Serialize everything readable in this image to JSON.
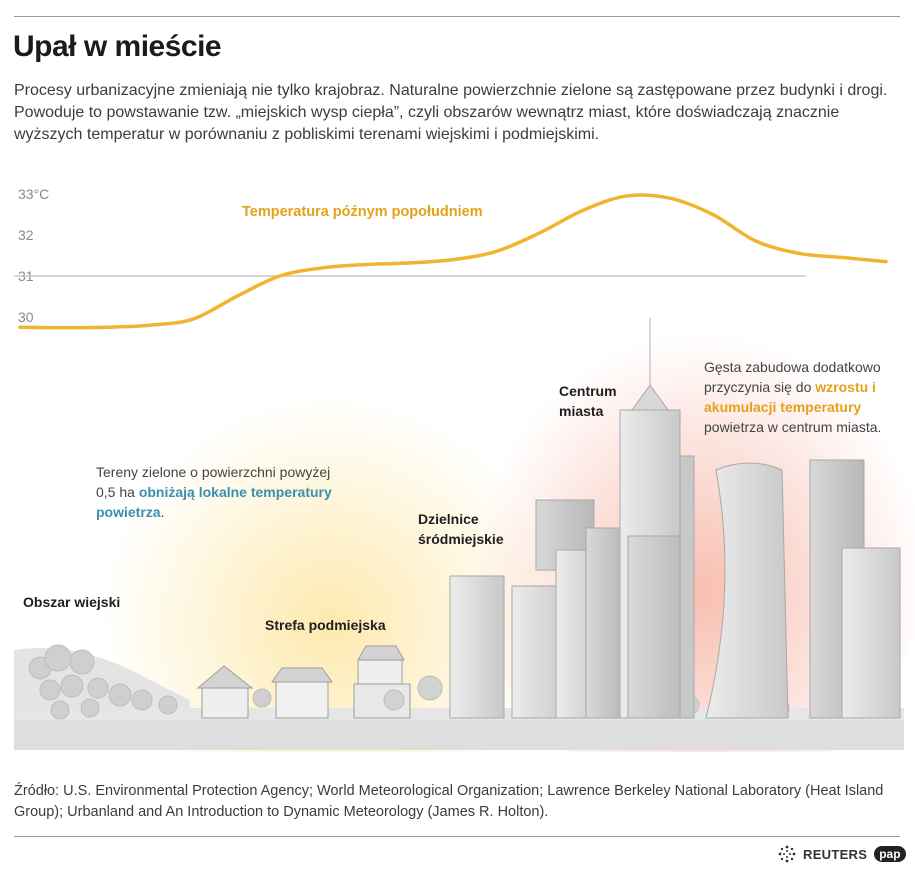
{
  "title": "Upał w mieście",
  "intro": "Procesy urbanizacyjne zmieniają nie tylko krajobraz. Naturalne powierzchnie zielone są zastępowane przez budynki i drogi. Powoduje to powstawanie tzw. „miejskich wysp ciepła”, czyli obszarów wewnątrz miast, które doświadczają znacznie wyższych temperatur w porównaniu z pobliskimi terenami wiejskimi i podmiejskimi.",
  "chart_data": {
    "type": "line",
    "series": [
      {
        "name": "Temperatura  późnym popołudniem",
        "color": "#f0b431",
        "x": [
          0,
          5,
          10,
          15,
          20,
          25,
          30,
          35,
          40,
          45,
          50,
          55,
          60,
          65,
          70,
          75,
          80,
          85,
          90,
          95,
          100
        ],
        "y": [
          29.75,
          29.74,
          29.75,
          29.8,
          29.95,
          30.5,
          31.0,
          31.2,
          31.28,
          31.32,
          31.4,
          31.6,
          32.05,
          32.6,
          32.95,
          32.9,
          32.5,
          31.85,
          31.55,
          31.45,
          31.35
        ]
      }
    ],
    "xlim": [
      0,
      100
    ],
    "ylim": [
      29,
      33
    ],
    "yticks": [
      {
        "value": 30,
        "label": "30"
      },
      {
        "value": 31,
        "label": "31"
      },
      {
        "value": 32,
        "label": "32"
      },
      {
        "value": 33,
        "label": "33°C"
      }
    ],
    "grid": false,
    "reference_line": 31
  },
  "zones": {
    "rural": "Obszar wiejski",
    "suburban": "Strefa podmiejska",
    "downtown": [
      "Dzielnice",
      "śródmiejskie"
    ],
    "center": [
      "Centrum",
      "miasta"
    ]
  },
  "notes": {
    "green": {
      "before": "Tereny zielone o powierzchni powyżej",
      "line2": "0,5 ha ",
      "highlight_a": "obniżają lokalne temperatury",
      "highlight_b": "powietrza",
      "after": "."
    },
    "center": {
      "line1": "Gęsta zabudowa dodatkowo",
      "line2": "przyczynia się do ",
      "highlight_a": "wzrostu i",
      "highlight_b": "akumulacji temperatury",
      "line4": "powietrza w centrum miasta."
    }
  },
  "colors": {
    "line": "#f0b431",
    "blue": "#3b8fb0",
    "orange": "#e3a21a",
    "warm_glow": "#fde7a6",
    "hot_glow": "#f7b3a3"
  },
  "source": "Źródło: U.S. Environmental Protection Agency; World Meteorological Organization; Lawrence Berkeley National Laboratory (Heat Island Group); Urbanland and An Introduction to Dynamic Meteorology (James R. Holton).",
  "logos": {
    "reuters": "REUTERS",
    "pap": "pap"
  }
}
